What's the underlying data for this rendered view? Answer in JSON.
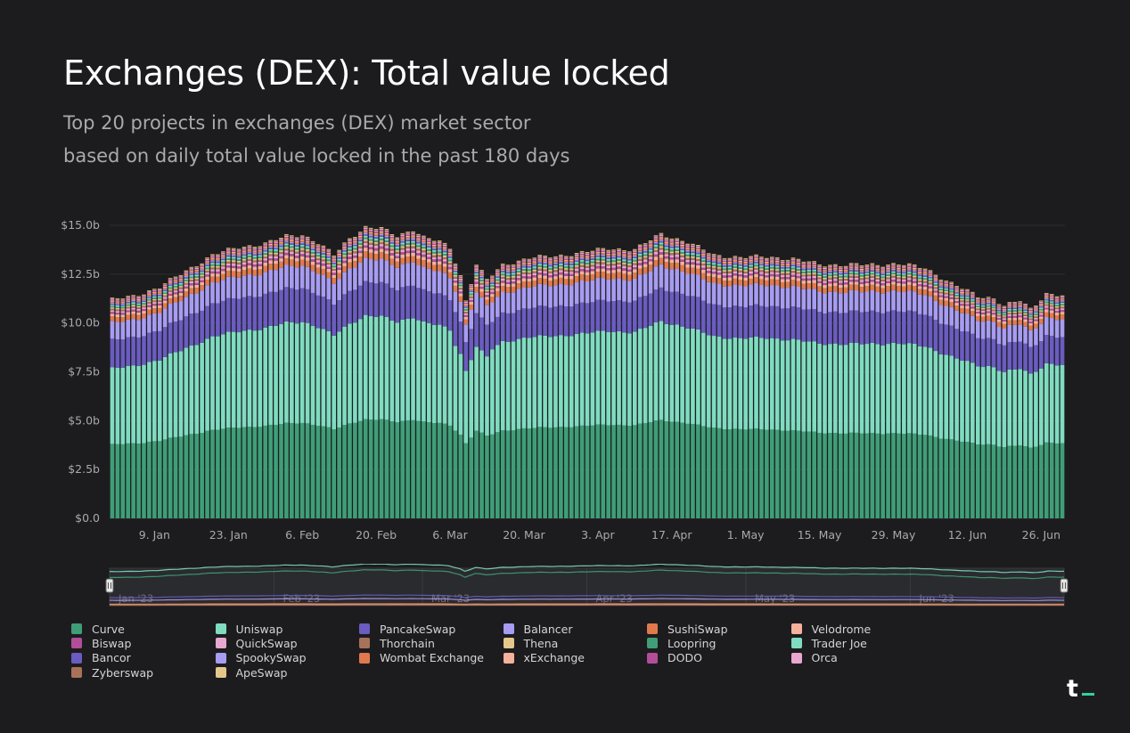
{
  "header": {
    "title": "Exchanges (DEX): Total value locked",
    "subtitle_lines": [
      "Top 20 projects in exchanges (DEX) market sector",
      "based on daily total value locked in the past 180 days"
    ]
  },
  "chart_data": {
    "type": "bar",
    "stacked": true,
    "title": "Exchanges (DEX): Total value locked",
    "xlabel": "",
    "ylabel": "",
    "ylim": [
      0,
      15
    ],
    "y_ticks": [
      0,
      2.5,
      5,
      7.5,
      10,
      12.5,
      15
    ],
    "y_tick_labels": [
      "$0.0",
      "$2.5b",
      "$5.0b",
      "$7.5b",
      "$10.0b",
      "$12.5b",
      "$15.0b"
    ],
    "x_tick_labels": [
      "9. Jan",
      "23. Jan",
      "6. Feb",
      "20. Feb",
      "6. Mar",
      "20. Mar",
      "3. Apr",
      "17. Apr",
      "1. May",
      "15. May",
      "29. May",
      "12. Jun",
      "26. Jun"
    ],
    "x_tick_positions": [
      9,
      23,
      37,
      51,
      65,
      79,
      93,
      107,
      121,
      135,
      149,
      163,
      177
    ],
    "grid": true,
    "legend_position": "bottom",
    "unit": "USD billions",
    "daily_total_keypoints": [
      [
        1,
        11.1
      ],
      [
        5,
        11.25
      ],
      [
        10,
        11.7
      ],
      [
        15,
        12.5
      ],
      [
        20,
        13.3
      ],
      [
        25,
        13.7
      ],
      [
        30,
        13.9
      ],
      [
        34,
        14.3
      ],
      [
        37,
        14.4
      ],
      [
        40,
        14.0
      ],
      [
        43,
        13.4
      ],
      [
        46,
        14.3
      ],
      [
        49,
        14.9
      ],
      [
        52,
        14.85
      ],
      [
        55,
        14.5
      ],
      [
        58,
        14.9
      ],
      [
        60,
        14.5
      ],
      [
        63,
        14.3
      ],
      [
        65,
        14.0
      ],
      [
        67,
        12.6
      ],
      [
        68,
        11.3
      ],
      [
        70,
        13.2
      ],
      [
        72,
        12.4
      ],
      [
        75,
        13.2
      ],
      [
        80,
        13.6
      ],
      [
        85,
        13.7
      ],
      [
        90,
        13.9
      ],
      [
        95,
        14.1
      ],
      [
        100,
        14.0
      ],
      [
        105,
        14.8
      ],
      [
        110,
        14.3
      ],
      [
        115,
        13.6
      ],
      [
        120,
        13.4
      ],
      [
        125,
        13.4
      ],
      [
        130,
        13.2
      ],
      [
        135,
        12.9
      ],
      [
        140,
        12.8
      ],
      [
        145,
        12.8
      ],
      [
        150,
        12.8
      ],
      [
        155,
        12.6
      ],
      [
        160,
        11.8
      ],
      [
        165,
        11.2
      ],
      [
        168,
        11.1
      ],
      [
        170,
        10.7
      ],
      [
        173,
        11.0
      ],
      [
        175,
        10.6
      ],
      [
        178,
        11.4
      ],
      [
        181,
        11.3
      ]
    ],
    "series": [
      {
        "name": "Curve",
        "color": "#3f9e78",
        "share": 0.34
      },
      {
        "name": "Uniswap",
        "color": "#7fdcc0",
        "share": 0.35
      },
      {
        "name": "PancakeSwap",
        "color": "#6a5cc0",
        "share": 0.12
      },
      {
        "name": "Balancer",
        "color": "#a79cf2",
        "share": 0.08
      },
      {
        "name": "SushiSwap",
        "color": "#e07a4d",
        "share": 0.022
      },
      {
        "name": "Velodrome",
        "color": "#f5b19c",
        "share": 0.012
      },
      {
        "name": "Biswap",
        "color": "#b24e99",
        "share": 0.008
      },
      {
        "name": "QuickSwap",
        "color": "#e8a7cf",
        "share": 0.008
      },
      {
        "name": "Thorchain",
        "color": "#a8725a",
        "share": 0.007
      },
      {
        "name": "Thena",
        "color": "#e6c78b",
        "share": 0.006
      },
      {
        "name": "Loopring",
        "color": "#3f9e78",
        "share": 0.006
      },
      {
        "name": "Trader Joe",
        "color": "#7fdcc0",
        "share": 0.006
      },
      {
        "name": "Bancor",
        "color": "#6a5cc0",
        "share": 0.005
      },
      {
        "name": "SpookySwap",
        "color": "#a79cf2",
        "share": 0.005
      },
      {
        "name": "Wombat Exchange",
        "color": "#e07a4d",
        "share": 0.005
      },
      {
        "name": "xExchange",
        "color": "#f5b19c",
        "share": 0.004
      },
      {
        "name": "DODO",
        "color": "#b24e99",
        "share": 0.004
      },
      {
        "name": "Orca",
        "color": "#e8a7cf",
        "share": 0.004
      },
      {
        "name": "Zyberswap",
        "color": "#a8725a",
        "share": 0.003
      },
      {
        "name": "ApeSwap",
        "color": "#e6c78b",
        "share": 0.003
      }
    ]
  },
  "navigator": {
    "labels": [
      "Jan '23",
      "Feb '23",
      "Mar '23",
      "Apr '23",
      "May '23",
      "Jun '23"
    ]
  },
  "colors": {
    "background": "#1c1c1e",
    "grid": "#2e2e32",
    "axis_text": "#a9a9ae",
    "logo_accent": "#2fd39b"
  },
  "logo": {
    "text": "t"
  }
}
